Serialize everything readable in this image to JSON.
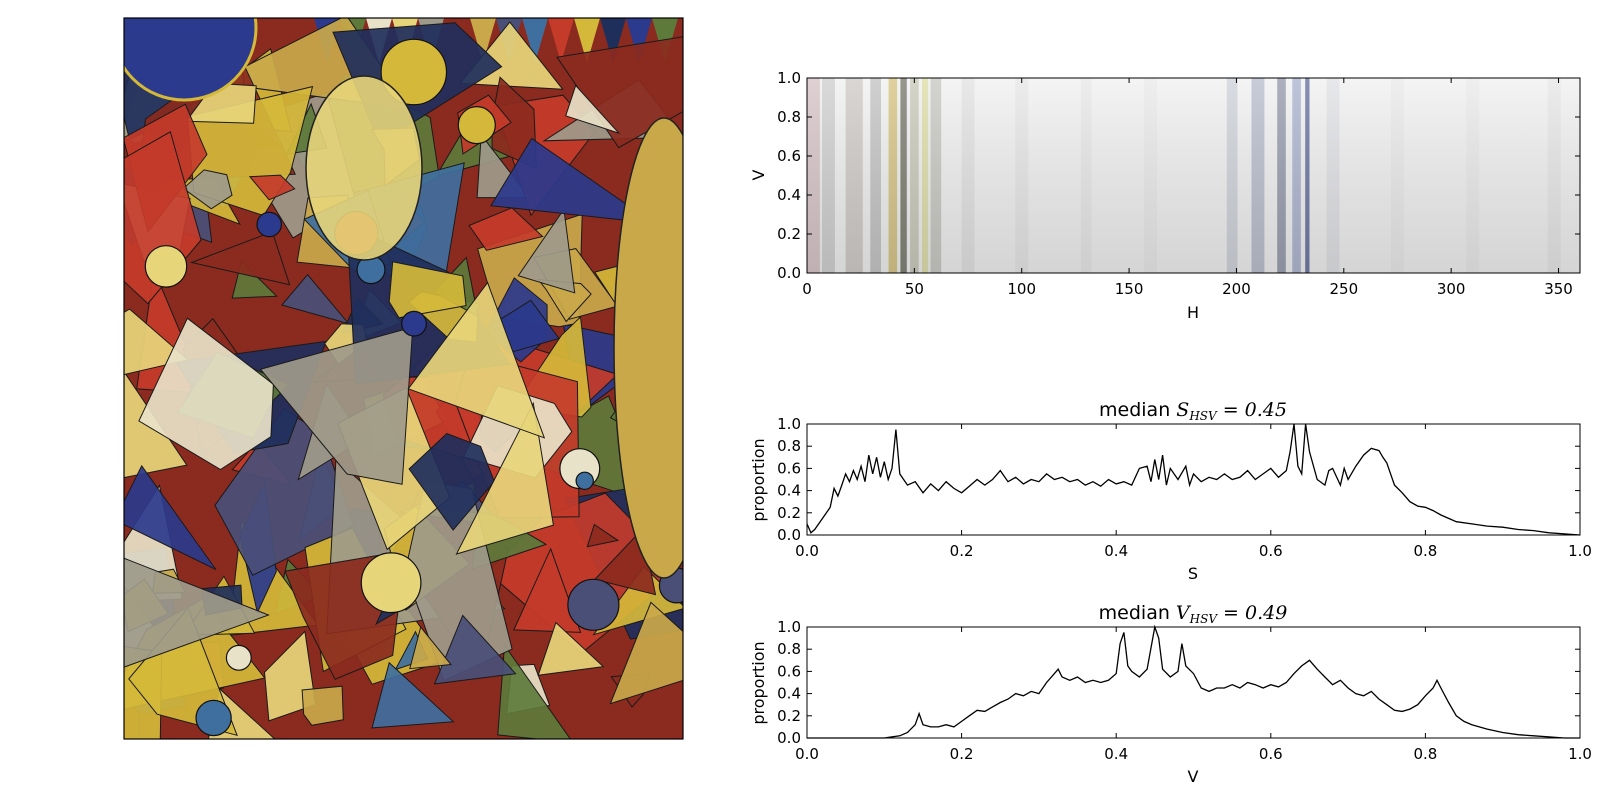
{
  "chart_data": [
    {
      "id": "painting",
      "type": "image",
      "palette": [
        "#2b3a8c",
        "#8b2a1e",
        "#d4b83a",
        "#e7d57a",
        "#3f6f9e",
        "#5d7a3a",
        "#c9a84a",
        "#1f2f5c",
        "#9e9a8a",
        "#c43b2a",
        "#e8e2c8",
        "#4a4f78"
      ]
    },
    {
      "id": "hue-strip",
      "type": "heatmap",
      "xlabel": "H",
      "ylabel": "V",
      "xlim": [
        0,
        360
      ],
      "ylim": [
        0.0,
        1.0
      ],
      "xticks": [
        "0",
        "50",
        "100",
        "150",
        "200",
        "250",
        "300",
        "350"
      ],
      "yticks": [
        "0.0",
        "0.2",
        "0.4",
        "0.6",
        "0.8",
        "1.0"
      ],
      "bands": [
        {
          "h": 3,
          "w": 6,
          "color": "#b07a86",
          "o": 0.35
        },
        {
          "h": 10,
          "w": 6,
          "color": "#8a8a8a",
          "o": 0.3
        },
        {
          "h": 22,
          "w": 8,
          "color": "#9a8f88",
          "o": 0.35
        },
        {
          "h": 32,
          "w": 5,
          "color": "#7a7a7a",
          "o": 0.35
        },
        {
          "h": 40,
          "w": 4,
          "color": "#c7a53a",
          "o": 0.55
        },
        {
          "h": 45,
          "w": 3,
          "color": "#3a3a2a",
          "o": 0.6
        },
        {
          "h": 50,
          "w": 4,
          "color": "#a0a080",
          "o": 0.45
        },
        {
          "h": 55,
          "w": 3,
          "color": "#d6d27a",
          "o": 0.55
        },
        {
          "h": 60,
          "w": 5,
          "color": "#888878",
          "o": 0.35
        },
        {
          "h": 75,
          "w": 6,
          "color": "#c8c8c8",
          "o": 0.3
        },
        {
          "h": 100,
          "w": 6,
          "color": "#cfcfcf",
          "o": 0.25
        },
        {
          "h": 130,
          "w": 5,
          "color": "#d2d2d2",
          "o": 0.25
        },
        {
          "h": 160,
          "w": 6,
          "color": "#d5d5d5",
          "o": 0.22
        },
        {
          "h": 198,
          "w": 5,
          "color": "#9aa4b8",
          "o": 0.35
        },
        {
          "h": 210,
          "w": 6,
          "color": "#7f8aa8",
          "o": 0.45
        },
        {
          "h": 221,
          "w": 4,
          "color": "#5a6280",
          "o": 0.55
        },
        {
          "h": 228,
          "w": 4,
          "color": "#7e8cbc",
          "o": 0.55
        },
        {
          "h": 233,
          "w": 2,
          "color": "#3c4a88",
          "o": 0.7
        },
        {
          "h": 245,
          "w": 6,
          "color": "#bfc2cc",
          "o": 0.3
        },
        {
          "h": 275,
          "w": 6,
          "color": "#d8d8d8",
          "o": 0.2
        },
        {
          "h": 310,
          "w": 6,
          "color": "#d8d8d8",
          "o": 0.2
        },
        {
          "h": 348,
          "w": 6,
          "color": "#cfcfcf",
          "o": 0.25
        }
      ]
    },
    {
      "id": "saturation-hist",
      "type": "line",
      "title_prefix": "median ",
      "title_var": "S",
      "title_sub": "HSV",
      "title_value": " = 0.45",
      "xlabel": "S",
      "ylabel": "proportion",
      "xlim": [
        0.0,
        1.0
      ],
      "ylim": [
        0.0,
        1.0
      ],
      "xticks": [
        "0.0",
        "0.2",
        "0.4",
        "0.6",
        "0.8",
        "1.0"
      ],
      "yticks": [
        "0.0",
        "0.2",
        "0.4",
        "0.6",
        "0.8",
        "1.0"
      ],
      "x": [
        0.0,
        0.005,
        0.01,
        0.02,
        0.03,
        0.035,
        0.04,
        0.045,
        0.05,
        0.055,
        0.06,
        0.065,
        0.07,
        0.075,
        0.08,
        0.085,
        0.09,
        0.095,
        0.1,
        0.105,
        0.11,
        0.115,
        0.12,
        0.125,
        0.13,
        0.14,
        0.15,
        0.16,
        0.17,
        0.18,
        0.19,
        0.2,
        0.21,
        0.22,
        0.23,
        0.24,
        0.25,
        0.26,
        0.27,
        0.28,
        0.29,
        0.3,
        0.31,
        0.32,
        0.33,
        0.34,
        0.35,
        0.36,
        0.37,
        0.38,
        0.39,
        0.4,
        0.41,
        0.42,
        0.43,
        0.44,
        0.445,
        0.45,
        0.455,
        0.46,
        0.465,
        0.47,
        0.48,
        0.49,
        0.495,
        0.5,
        0.51,
        0.52,
        0.53,
        0.54,
        0.55,
        0.56,
        0.57,
        0.58,
        0.59,
        0.6,
        0.61,
        0.62,
        0.625,
        0.63,
        0.635,
        0.64,
        0.645,
        0.65,
        0.66,
        0.67,
        0.675,
        0.68,
        0.69,
        0.695,
        0.7,
        0.71,
        0.72,
        0.73,
        0.74,
        0.745,
        0.75,
        0.755,
        0.76,
        0.77,
        0.78,
        0.79,
        0.8,
        0.81,
        0.82,
        0.83,
        0.84,
        0.86,
        0.88,
        0.9,
        0.92,
        0.94,
        0.96,
        0.98,
        1.0
      ],
      "y": [
        0.1,
        0.02,
        0.05,
        0.15,
        0.25,
        0.42,
        0.35,
        0.45,
        0.55,
        0.48,
        0.58,
        0.5,
        0.62,
        0.48,
        0.72,
        0.55,
        0.7,
        0.52,
        0.66,
        0.5,
        0.6,
        0.95,
        0.55,
        0.5,
        0.45,
        0.48,
        0.38,
        0.46,
        0.4,
        0.48,
        0.42,
        0.38,
        0.44,
        0.5,
        0.45,
        0.5,
        0.58,
        0.48,
        0.52,
        0.46,
        0.5,
        0.48,
        0.55,
        0.5,
        0.52,
        0.48,
        0.5,
        0.45,
        0.48,
        0.44,
        0.5,
        0.46,
        0.48,
        0.45,
        0.6,
        0.62,
        0.48,
        0.68,
        0.5,
        0.72,
        0.45,
        0.6,
        0.5,
        0.62,
        0.45,
        0.55,
        0.48,
        0.52,
        0.5,
        0.55,
        0.5,
        0.52,
        0.58,
        0.5,
        0.55,
        0.6,
        0.52,
        0.58,
        0.75,
        1.0,
        0.62,
        0.55,
        1.0,
        0.75,
        0.5,
        0.45,
        0.58,
        0.6,
        0.45,
        0.6,
        0.5,
        0.62,
        0.72,
        0.78,
        0.76,
        0.7,
        0.65,
        0.55,
        0.45,
        0.38,
        0.3,
        0.26,
        0.25,
        0.22,
        0.18,
        0.15,
        0.12,
        0.1,
        0.08,
        0.07,
        0.05,
        0.04,
        0.02,
        0.01,
        0.0
      ]
    },
    {
      "id": "value-hist",
      "type": "line",
      "title_prefix": "median ",
      "title_var": "V",
      "title_sub": "HSV",
      "title_value": " = 0.49",
      "xlabel": "V",
      "ylabel": "proportion",
      "xlim": [
        0.0,
        1.0
      ],
      "ylim": [
        0.0,
        1.0
      ],
      "xticks": [
        "0.0",
        "0.2",
        "0.4",
        "0.6",
        "0.8",
        "1.0"
      ],
      "yticks": [
        "0.0",
        "0.2",
        "0.4",
        "0.6",
        "0.8",
        "1.0"
      ],
      "x": [
        0.0,
        0.05,
        0.1,
        0.12,
        0.13,
        0.14,
        0.145,
        0.15,
        0.16,
        0.17,
        0.18,
        0.19,
        0.2,
        0.21,
        0.22,
        0.23,
        0.24,
        0.25,
        0.26,
        0.27,
        0.28,
        0.29,
        0.3,
        0.31,
        0.32,
        0.325,
        0.33,
        0.34,
        0.35,
        0.36,
        0.37,
        0.38,
        0.39,
        0.4,
        0.405,
        0.41,
        0.415,
        0.42,
        0.43,
        0.44,
        0.45,
        0.455,
        0.46,
        0.47,
        0.48,
        0.485,
        0.49,
        0.5,
        0.51,
        0.52,
        0.53,
        0.54,
        0.55,
        0.56,
        0.57,
        0.58,
        0.59,
        0.6,
        0.61,
        0.62,
        0.63,
        0.64,
        0.65,
        0.66,
        0.67,
        0.68,
        0.69,
        0.7,
        0.71,
        0.72,
        0.73,
        0.74,
        0.75,
        0.76,
        0.77,
        0.78,
        0.79,
        0.8,
        0.81,
        0.815,
        0.82,
        0.83,
        0.84,
        0.85,
        0.86,
        0.88,
        0.9,
        0.92,
        0.94,
        0.96,
        0.98,
        1.0
      ],
      "y": [
        0.0,
        0.0,
        0.0,
        0.02,
        0.05,
        0.12,
        0.22,
        0.12,
        0.1,
        0.1,
        0.12,
        0.1,
        0.15,
        0.2,
        0.25,
        0.24,
        0.28,
        0.32,
        0.35,
        0.4,
        0.38,
        0.42,
        0.4,
        0.5,
        0.58,
        0.62,
        0.55,
        0.52,
        0.55,
        0.5,
        0.52,
        0.5,
        0.52,
        0.58,
        0.85,
        0.95,
        0.65,
        0.6,
        0.55,
        0.62,
        1.0,
        0.9,
        0.62,
        0.55,
        0.6,
        0.85,
        0.65,
        0.58,
        0.45,
        0.42,
        0.45,
        0.45,
        0.48,
        0.45,
        0.5,
        0.48,
        0.45,
        0.48,
        0.46,
        0.5,
        0.58,
        0.65,
        0.7,
        0.62,
        0.55,
        0.48,
        0.52,
        0.45,
        0.4,
        0.38,
        0.42,
        0.35,
        0.3,
        0.25,
        0.24,
        0.26,
        0.3,
        0.38,
        0.45,
        0.52,
        0.45,
        0.32,
        0.2,
        0.15,
        0.12,
        0.08,
        0.05,
        0.03,
        0.02,
        0.01,
        0.0,
        0.0
      ]
    }
  ]
}
